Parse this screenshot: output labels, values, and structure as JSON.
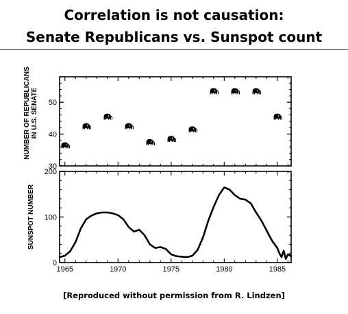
{
  "title": {
    "line1": "Correlation is not causation:",
    "line2": "Senate Republicans vs. Sunspot count"
  },
  "footer": "[Reproduced without permission from R. Lindzen]",
  "colors": {
    "ink": "#000000",
    "background": "#ffffff"
  },
  "chart_data": [
    {
      "type": "scatter",
      "ylabel_lines": [
        "NUMBER OF REPUBLICANS",
        "IN U.S. SENATE"
      ],
      "xlim": [
        1964.5,
        1986.3
      ],
      "ylim": [
        30,
        58
      ],
      "yticks": [
        30,
        40,
        50
      ],
      "marker_icon": "elephant-icon",
      "x": [
        1965,
        1967,
        1969,
        1971,
        1973,
        1975,
        1977,
        1979,
        1981,
        1983,
        1985
      ],
      "values": [
        36,
        42,
        45,
        42,
        37,
        38,
        41,
        53,
        53,
        53,
        45
      ]
    },
    {
      "type": "line",
      "ylabel": "SUNSPOT NUMBER",
      "xlim": [
        1964.5,
        1986.3
      ],
      "ylim": [
        0,
        200
      ],
      "yticks": [
        0,
        100,
        200
      ],
      "xticks": [
        1965,
        1970,
        1975,
        1980,
        1985
      ],
      "x": [
        1964.5,
        1965,
        1965.5,
        1966,
        1966.5,
        1967,
        1967.5,
        1968,
        1968.5,
        1969,
        1969.5,
        1970,
        1970.5,
        1971,
        1971.5,
        1972,
        1972.5,
        1973,
        1973.5,
        1974,
        1974.5,
        1975,
        1975.5,
        1976,
        1976.5,
        1977,
        1977.5,
        1978,
        1978.5,
        1979,
        1979.5,
        1980,
        1980.5,
        1981,
        1981.5,
        1982,
        1982.5,
        1983,
        1983.5,
        1984,
        1984.5,
        1985,
        1985.2,
        1985.4,
        1985.6,
        1985.8,
        1986,
        1986.3
      ],
      "values": [
        12,
        15,
        25,
        45,
        75,
        95,
        103,
        108,
        110,
        110,
        108,
        104,
        95,
        78,
        68,
        72,
        60,
        40,
        32,
        34,
        30,
        18,
        14,
        13,
        12,
        15,
        28,
        55,
        92,
        122,
        148,
        165,
        160,
        148,
        140,
        138,
        130,
        110,
        92,
        70,
        48,
        32,
        20,
        12,
        26,
        8,
        18,
        14
      ]
    }
  ]
}
